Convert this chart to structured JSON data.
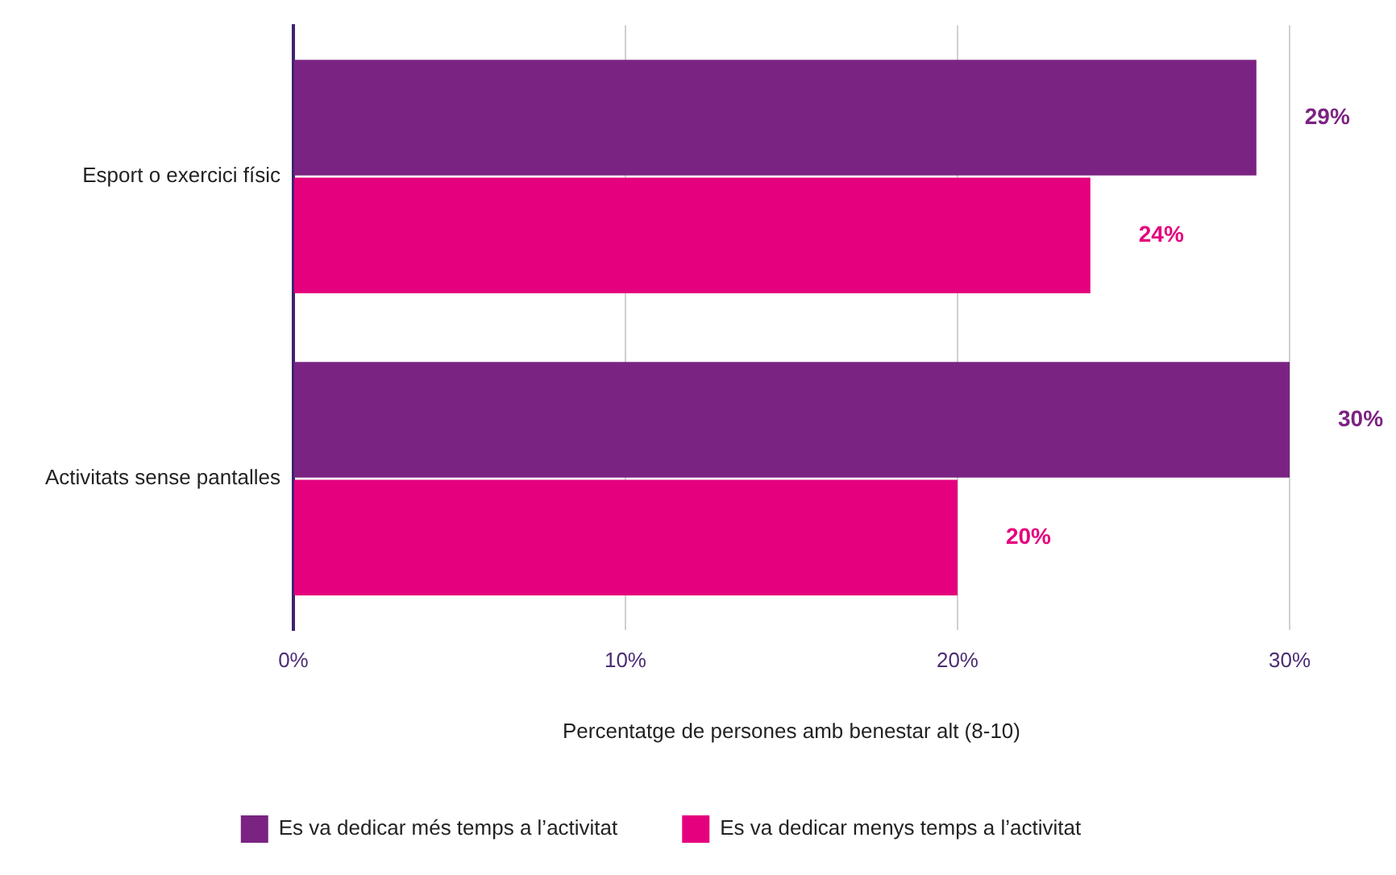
{
  "chart_data": {
    "type": "bar",
    "orientation": "horizontal",
    "categories": [
      "Esport o exercici físic",
      "Activitats sense pantalles"
    ],
    "series": [
      {
        "name": "Es va dedicar més temps a l’activitat",
        "color": "#7b2382",
        "values": [
          29,
          30
        ]
      },
      {
        "name": "Es va dedicar menys temps a l’activitat",
        "color": "#e5007d",
        "values": [
          24,
          20
        ]
      }
    ],
    "xlabel": "Percentatge de persones amb benestar alt (8-10)",
    "xlim": [
      0,
      30
    ],
    "xticks": [
      {
        "value": 0,
        "label": "0%"
      },
      {
        "value": 10,
        "label": "10%"
      },
      {
        "value": 20,
        "label": "20%"
      },
      {
        "value": 30,
        "label": "30%"
      }
    ],
    "value_labels": [
      [
        "29%",
        "30%"
      ],
      [
        "24%",
        "20%"
      ]
    ],
    "grid": "x",
    "legend": "bottom"
  }
}
